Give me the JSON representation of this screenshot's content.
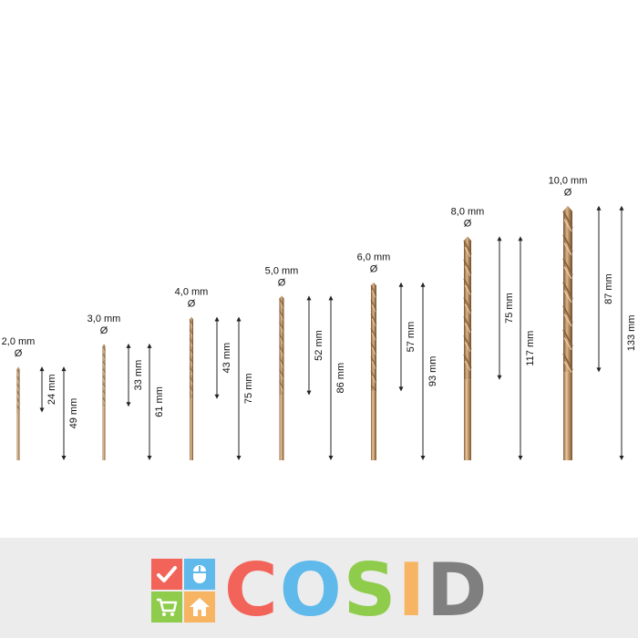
{
  "drill_bits": [
    {
      "diameter_label": "2,0 mm",
      "diameter_symbol": "Ø",
      "flute_length_label": "24 mm",
      "total_length_label": "49 mm",
      "diameter_mm": 2.0,
      "flute_mm": 24,
      "total_mm": 49
    },
    {
      "diameter_label": "3,0 mm",
      "diameter_symbol": "Ø",
      "flute_length_label": "33 mm",
      "total_length_label": "61 mm",
      "diameter_mm": 3.0,
      "flute_mm": 33,
      "total_mm": 61
    },
    {
      "diameter_label": "4,0 mm",
      "diameter_symbol": "Ø",
      "flute_length_label": "43 mm",
      "total_length_label": "75 mm",
      "diameter_mm": 4.0,
      "flute_mm": 43,
      "total_mm": 75
    },
    {
      "diameter_label": "5,0 mm",
      "diameter_symbol": "Ø",
      "flute_length_label": "52 mm",
      "total_length_label": "86 mm",
      "diameter_mm": 5.0,
      "flute_mm": 52,
      "total_mm": 86
    },
    {
      "diameter_label": "6,0 mm",
      "diameter_symbol": "Ø",
      "flute_length_label": "57 mm",
      "total_length_label": "93 mm",
      "diameter_mm": 6.0,
      "flute_mm": 57,
      "total_mm": 93
    },
    {
      "diameter_label": "8,0 mm",
      "diameter_symbol": "Ø",
      "flute_length_label": "75 mm",
      "total_length_label": "117 mm",
      "diameter_mm": 8.0,
      "flute_mm": 75,
      "total_mm": 117
    },
    {
      "diameter_label": "10,0 mm",
      "diameter_symbol": "Ø",
      "flute_length_label": "87 mm",
      "total_length_label": "133 mm",
      "diameter_mm": 10.0,
      "flute_mm": 87,
      "total_mm": 133
    }
  ],
  "logo": {
    "text": "COSID",
    "letters": [
      {
        "char": "C",
        "color": "#f2645a"
      },
      {
        "char": "O",
        "color": "#5fb9ea"
      },
      {
        "char": "S",
        "color": "#8fcc4c"
      },
      {
        "char": "I",
        "color": "#f7b463"
      },
      {
        "char": "D",
        "color": "#7f7f7f"
      }
    ],
    "tiles": [
      {
        "icon": "checkmark-icon",
        "color": "#f2645a"
      },
      {
        "icon": "mouse-icon",
        "color": "#5fb9ea"
      },
      {
        "icon": "shopping-cart-icon",
        "color": "#8fcc4c"
      },
      {
        "icon": "house-icon",
        "color": "#f7b463"
      }
    ]
  },
  "colors": {
    "bit_base": "#c59a6c",
    "bit_dark": "#8a6038",
    "bit_light": "#ecd3b0",
    "dimension_line": "#222222",
    "footer_bg": "#ececec"
  }
}
